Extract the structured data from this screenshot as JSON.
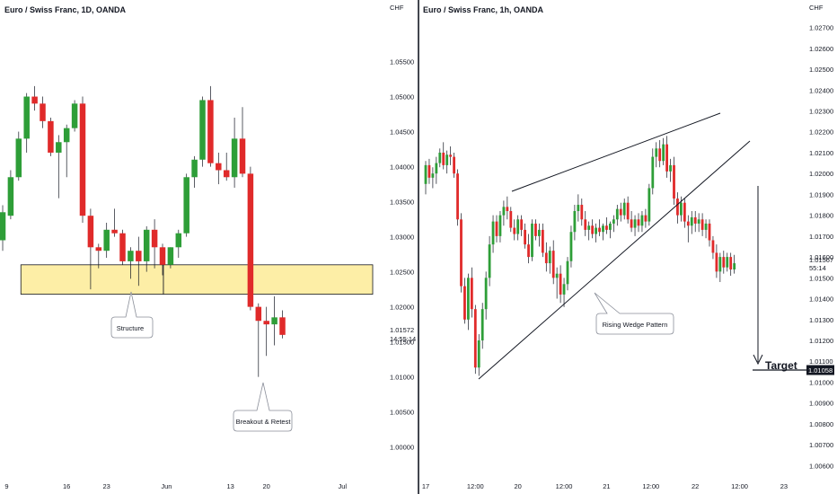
{
  "colors": {
    "up": "#2e9e38",
    "down": "#e02a2a",
    "zone_fill": "#fdeea6",
    "zone_stroke": "#131722",
    "text": "#131722",
    "price_tag_bg": "#131722",
    "price_tag_text": "#ffffff"
  },
  "chart_data": [
    {
      "type": "candlestick",
      "title": "Euro / Swiss Franc, 1D, OANDA",
      "currency": "CHF",
      "ylim": [
        0.9965,
        1.0625
      ],
      "y_ticks": [
        "1.05500",
        "1.05000",
        "1.04500",
        "1.04000",
        "1.03500",
        "1.03000",
        "1.02500",
        "1.02000",
        "1.01500",
        "1.01000",
        "1.00500",
        "1.00000"
      ],
      "y_tick_values": [
        1.055,
        1.05,
        1.045,
        1.04,
        1.035,
        1.03,
        1.025,
        1.02,
        1.015,
        1.01,
        1.005,
        1.0
      ],
      "x_ticks": [
        "9",
        "16",
        "23",
        "Jun",
        "13",
        "20",
        "Jul"
      ],
      "x_tick_index": [
        0.5,
        8,
        13,
        20.5,
        28.5,
        33,
        42.5
      ],
      "last_price": "1.01572",
      "countdown": "14:55:14",
      "zone": {
        "top": 1.026,
        "bottom": 1.0218,
        "start_index": 2.5,
        "end_index": 45,
        "split_index": 20
      },
      "annotations": [
        {
          "text": "Structure",
          "price": 1.0232
        },
        {
          "text": "Breakout & Retest",
          "price": 1.0095
        }
      ],
      "candles": [
        {
          "o": 1.0295,
          "h": 1.0345,
          "l": 1.028,
          "c": 1.0335
        },
        {
          "o": 1.033,
          "h": 1.0395,
          "l": 1.0325,
          "c": 1.0385
        },
        {
          "o": 1.0385,
          "h": 1.045,
          "l": 1.038,
          "c": 1.044
        },
        {
          "o": 1.044,
          "h": 1.0505,
          "l": 1.042,
          "c": 1.05
        },
        {
          "o": 1.05,
          "h": 1.0515,
          "l": 1.048,
          "c": 1.049
        },
        {
          "o": 1.049,
          "h": 1.05,
          "l": 1.0455,
          "c": 1.0465
        },
        {
          "o": 1.0465,
          "h": 1.047,
          "l": 1.0415,
          "c": 1.042
        },
        {
          "o": 1.042,
          "h": 1.0445,
          "l": 1.0355,
          "c": 1.0435
        },
        {
          "o": 1.0435,
          "h": 1.046,
          "l": 1.0385,
          "c": 1.0455
        },
        {
          "o": 1.0455,
          "h": 1.0495,
          "l": 1.045,
          "c": 1.049
        },
        {
          "o": 1.049,
          "h": 1.05,
          "l": 1.032,
          "c": 1.033
        },
        {
          "o": 1.033,
          "h": 1.034,
          "l": 1.0225,
          "c": 1.0285
        },
        {
          "o": 1.0285,
          "h": 1.029,
          "l": 1.0255,
          "c": 1.028
        },
        {
          "o": 1.028,
          "h": 1.032,
          "l": 1.027,
          "c": 1.031
        },
        {
          "o": 1.031,
          "h": 1.034,
          "l": 1.03,
          "c": 1.0305
        },
        {
          "o": 1.0305,
          "h": 1.031,
          "l": 1.026,
          "c": 1.0265
        },
        {
          "o": 1.0265,
          "h": 1.0285,
          "l": 1.024,
          "c": 1.028
        },
        {
          "o": 1.028,
          "h": 1.03,
          "l": 1.023,
          "c": 1.0265
        },
        {
          "o": 1.0265,
          "h": 1.0315,
          "l": 1.025,
          "c": 1.031
        },
        {
          "o": 1.031,
          "h": 1.0325,
          "l": 1.0255,
          "c": 1.0285
        },
        {
          "o": 1.0285,
          "h": 1.029,
          "l": 1.0245,
          "c": 1.026
        },
        {
          "o": 1.026,
          "h": 1.0285,
          "l": 1.0255,
          "c": 1.0285
        },
        {
          "o": 1.0285,
          "h": 1.031,
          "l": 1.027,
          "c": 1.0305
        },
        {
          "o": 1.0305,
          "h": 1.039,
          "l": 1.03,
          "c": 1.0385
        },
        {
          "o": 1.0385,
          "h": 1.0415,
          "l": 1.037,
          "c": 1.041
        },
        {
          "o": 1.041,
          "h": 1.05,
          "l": 1.04,
          "c": 1.0495
        },
        {
          "o": 1.0495,
          "h": 1.0515,
          "l": 1.04,
          "c": 1.0405
        },
        {
          "o": 1.0405,
          "h": 1.042,
          "l": 1.0375,
          "c": 1.0395
        },
        {
          "o": 1.0395,
          "h": 1.042,
          "l": 1.038,
          "c": 1.0385
        },
        {
          "o": 1.0385,
          "h": 1.047,
          "l": 1.037,
          "c": 1.044
        },
        {
          "o": 1.044,
          "h": 1.0485,
          "l": 1.0385,
          "c": 1.039
        },
        {
          "o": 1.039,
          "h": 1.04,
          "l": 1.0195,
          "c": 1.02
        },
        {
          "o": 1.02,
          "h": 1.0205,
          "l": 1.01,
          "c": 1.018
        },
        {
          "o": 1.018,
          "h": 1.02,
          "l": 1.013,
          "c": 1.0175
        },
        {
          "o": 1.0175,
          "h": 1.0215,
          "l": 1.0145,
          "c": 1.0185
        },
        {
          "o": 1.0185,
          "h": 1.0195,
          "l": 1.0155,
          "c": 1.016
        }
      ]
    },
    {
      "type": "candlestick",
      "title": "Euro / Swiss Franc, 1h, OANDA",
      "currency": "CHF",
      "ylim": [
        1.0055,
        1.0278
      ],
      "y_ticks": [
        "1.02700",
        "1.02600",
        "1.02500",
        "1.02400",
        "1.02300",
        "1.02200",
        "1.02100",
        "1.02000",
        "1.01900",
        "1.01800",
        "1.01700",
        "1.01600",
        "1.01500",
        "1.01400",
        "1.01300",
        "1.01200",
        "1.01100",
        "1.01000",
        "1.00900",
        "1.00800",
        "1.00700",
        "1.00600"
      ],
      "y_tick_values": [
        1.027,
        1.026,
        1.025,
        1.024,
        1.023,
        1.022,
        1.021,
        1.02,
        1.019,
        1.018,
        1.017,
        1.016,
        1.015,
        1.014,
        1.013,
        1.012,
        1.011,
        1.01,
        1.009,
        1.008,
        1.007,
        1.006
      ],
      "x_ticks": [
        "17",
        "12:00",
        "20",
        "12:00",
        "21",
        "12:00",
        "22",
        "12:00",
        "23"
      ],
      "x_tick_index": [
        0,
        14,
        26,
        39,
        51,
        63.5,
        76,
        88.5,
        101
      ],
      "last_price": "1.01567",
      "countdown": "55:14",
      "target_price": "1.01058",
      "target_label": "Target",
      "pattern_label": "Rising Wedge Pattern",
      "candles": [
        {
          "o": 1.0195,
          "h": 1.0206,
          "l": 1.019,
          "c": 1.0204
        },
        {
          "o": 1.0204,
          "h": 1.0207,
          "l": 1.0195,
          "c": 1.0198
        },
        {
          "o": 1.0198,
          "h": 1.0203,
          "l": 1.0193,
          "c": 1.02
        },
        {
          "o": 1.02,
          "h": 1.0208,
          "l": 1.0195,
          "c": 1.0205
        },
        {
          "o": 1.0205,
          "h": 1.0212,
          "l": 1.0203,
          "c": 1.021
        },
        {
          "o": 1.021,
          "h": 1.0215,
          "l": 1.0202,
          "c": 1.0204
        },
        {
          "o": 1.0204,
          "h": 1.0211,
          "l": 1.02,
          "c": 1.0209
        },
        {
          "o": 1.0209,
          "h": 1.0213,
          "l": 1.0204,
          "c": 1.0208
        },
        {
          "o": 1.0208,
          "h": 1.021,
          "l": 1.0198,
          "c": 1.02
        },
        {
          "o": 1.02,
          "h": 1.0202,
          "l": 1.0175,
          "c": 1.0178
        },
        {
          "o": 1.0178,
          "h": 1.0181,
          "l": 1.0143,
          "c": 1.0146
        },
        {
          "o": 1.0146,
          "h": 1.015,
          "l": 1.0128,
          "c": 1.013
        },
        {
          "o": 1.013,
          "h": 1.0152,
          "l": 1.0125,
          "c": 1.015
        },
        {
          "o": 1.015,
          "h": 1.0155,
          "l": 1.0131,
          "c": 1.0135
        },
        {
          "o": 1.0135,
          "h": 1.0137,
          "l": 1.0104,
          "c": 1.0107
        },
        {
          "o": 1.0107,
          "h": 1.0123,
          "l": 1.0103,
          "c": 1.012
        },
        {
          "o": 1.012,
          "h": 1.0138,
          "l": 1.0116,
          "c": 1.0135
        },
        {
          "o": 1.0135,
          "h": 1.0153,
          "l": 1.013,
          "c": 1.015
        },
        {
          "o": 1.015,
          "h": 1.017,
          "l": 1.0146,
          "c": 1.0166
        },
        {
          "o": 1.0166,
          "h": 1.018,
          "l": 1.0162,
          "c": 1.0177
        },
        {
          "o": 1.0177,
          "h": 1.018,
          "l": 1.0167,
          "c": 1.017
        },
        {
          "o": 1.017,
          "h": 1.0182,
          "l": 1.0167,
          "c": 1.018
        },
        {
          "o": 1.018,
          "h": 1.0187,
          "l": 1.0175,
          "c": 1.0184
        },
        {
          "o": 1.0184,
          "h": 1.0189,
          "l": 1.0178,
          "c": 1.0182
        },
        {
          "o": 1.0182,
          "h": 1.0184,
          "l": 1.0172,
          "c": 1.0174
        },
        {
          "o": 1.0174,
          "h": 1.0178,
          "l": 1.0168,
          "c": 1.0171
        },
        {
          "o": 1.0171,
          "h": 1.018,
          "l": 1.0168,
          "c": 1.0178
        },
        {
          "o": 1.0178,
          "h": 1.018,
          "l": 1.017,
          "c": 1.0173
        },
        {
          "o": 1.0173,
          "h": 1.0176,
          "l": 1.0164,
          "c": 1.0166
        },
        {
          "o": 1.0166,
          "h": 1.0171,
          "l": 1.0157,
          "c": 1.016
        },
        {
          "o": 1.016,
          "h": 1.0178,
          "l": 1.0158,
          "c": 1.0176
        },
        {
          "o": 1.0176,
          "h": 1.0178,
          "l": 1.0168,
          "c": 1.017
        },
        {
          "o": 1.017,
          "h": 1.0176,
          "l": 1.0165,
          "c": 1.0173
        },
        {
          "o": 1.0173,
          "h": 1.0176,
          "l": 1.016,
          "c": 1.0162
        },
        {
          "o": 1.0162,
          "h": 1.0167,
          "l": 1.0153,
          "c": 1.0157
        },
        {
          "o": 1.0157,
          "h": 1.0165,
          "l": 1.0152,
          "c": 1.0163
        },
        {
          "o": 1.0163,
          "h": 1.0168,
          "l": 1.0147,
          "c": 1.015
        },
        {
          "o": 1.015,
          "h": 1.0155,
          "l": 1.014,
          "c": 1.0152
        },
        {
          "o": 1.0152,
          "h": 1.0156,
          "l": 1.0138,
          "c": 1.0142
        },
        {
          "o": 1.0142,
          "h": 1.015,
          "l": 1.0136,
          "c": 1.0147
        },
        {
          "o": 1.0147,
          "h": 1.016,
          "l": 1.0144,
          "c": 1.0158
        },
        {
          "o": 1.0158,
          "h": 1.0175,
          "l": 1.0155,
          "c": 1.0172
        },
        {
          "o": 1.0172,
          "h": 1.0185,
          "l": 1.0168,
          "c": 1.0182
        },
        {
          "o": 1.0182,
          "h": 1.019,
          "l": 1.0177,
          "c": 1.0185
        },
        {
          "o": 1.0185,
          "h": 1.0188,
          "l": 1.0175,
          "c": 1.0178
        },
        {
          "o": 1.0178,
          "h": 1.0182,
          "l": 1.017,
          "c": 1.0173
        },
        {
          "o": 1.0173,
          "h": 1.0177,
          "l": 1.0168,
          "c": 1.0175
        },
        {
          "o": 1.0175,
          "h": 1.0178,
          "l": 1.0169,
          "c": 1.0171
        },
        {
          "o": 1.0171,
          "h": 1.0176,
          "l": 1.0167,
          "c": 1.0174
        },
        {
          "o": 1.0174,
          "h": 1.0178,
          "l": 1.017,
          "c": 1.0172
        },
        {
          "o": 1.0172,
          "h": 1.0176,
          "l": 1.0168,
          "c": 1.0175
        },
        {
          "o": 1.0175,
          "h": 1.0179,
          "l": 1.0171,
          "c": 1.0173
        },
        {
          "o": 1.0173,
          "h": 1.0177,
          "l": 1.0169,
          "c": 1.0176
        },
        {
          "o": 1.0176,
          "h": 1.018,
          "l": 1.0172,
          "c": 1.0178
        },
        {
          "o": 1.0178,
          "h": 1.0185,
          "l": 1.0175,
          "c": 1.0183
        },
        {
          "o": 1.0183,
          "h": 1.0186,
          "l": 1.0177,
          "c": 1.018
        },
        {
          "o": 1.018,
          "h": 1.0188,
          "l": 1.0178,
          "c": 1.0186
        },
        {
          "o": 1.0186,
          "h": 1.0189,
          "l": 1.0176,
          "c": 1.0178
        },
        {
          "o": 1.0178,
          "h": 1.0182,
          "l": 1.0172,
          "c": 1.0174
        },
        {
          "o": 1.0174,
          "h": 1.018,
          "l": 1.017,
          "c": 1.0178
        },
        {
          "o": 1.0178,
          "h": 1.0181,
          "l": 1.0172,
          "c": 1.0175
        },
        {
          "o": 1.0175,
          "h": 1.0182,
          "l": 1.0172,
          "c": 1.018
        },
        {
          "o": 1.018,
          "h": 1.0183,
          "l": 1.0174,
          "c": 1.0177
        },
        {
          "o": 1.0177,
          "h": 1.0195,
          "l": 1.0175,
          "c": 1.0193
        },
        {
          "o": 1.0193,
          "h": 1.0212,
          "l": 1.019,
          "c": 1.0208
        },
        {
          "o": 1.0208,
          "h": 1.0215,
          "l": 1.0203,
          "c": 1.0212
        },
        {
          "o": 1.0212,
          "h": 1.0216,
          "l": 1.0203,
          "c": 1.0206
        },
        {
          "o": 1.0206,
          "h": 1.0217,
          "l": 1.0204,
          "c": 1.0214
        },
        {
          "o": 1.0214,
          "h": 1.0218,
          "l": 1.0198,
          "c": 1.0201
        },
        {
          "o": 1.0201,
          "h": 1.0207,
          "l": 1.0196,
          "c": 1.0204
        },
        {
          "o": 1.0204,
          "h": 1.0208,
          "l": 1.0185,
          "c": 1.0188
        },
        {
          "o": 1.0188,
          "h": 1.0191,
          "l": 1.0176,
          "c": 1.018
        },
        {
          "o": 1.018,
          "h": 1.0189,
          "l": 1.0177,
          "c": 1.0186
        },
        {
          "o": 1.0186,
          "h": 1.0188,
          "l": 1.0174,
          "c": 1.0177
        },
        {
          "o": 1.0177,
          "h": 1.018,
          "l": 1.0167,
          "c": 1.0175
        },
        {
          "o": 1.0175,
          "h": 1.0182,
          "l": 1.0171,
          "c": 1.0179
        },
        {
          "o": 1.0179,
          "h": 1.0182,
          "l": 1.0172,
          "c": 1.0176
        },
        {
          "o": 1.0176,
          "h": 1.0181,
          "l": 1.0172,
          "c": 1.0178
        },
        {
          "o": 1.0178,
          "h": 1.0181,
          "l": 1.017,
          "c": 1.0173
        },
        {
          "o": 1.0173,
          "h": 1.0178,
          "l": 1.0169,
          "c": 1.0176
        },
        {
          "o": 1.0176,
          "h": 1.0178,
          "l": 1.0165,
          "c": 1.0168
        },
        {
          "o": 1.0168,
          "h": 1.017,
          "l": 1.0159,
          "c": 1.0162
        },
        {
          "o": 1.0162,
          "h": 1.0166,
          "l": 1.015,
          "c": 1.0153
        },
        {
          "o": 1.0153,
          "h": 1.0162,
          "l": 1.0148,
          "c": 1.016
        },
        {
          "o": 1.016,
          "h": 1.0163,
          "l": 1.0152,
          "c": 1.0155
        },
        {
          "o": 1.0155,
          "h": 1.0162,
          "l": 1.0153,
          "c": 1.016
        },
        {
          "o": 1.016,
          "h": 1.0162,
          "l": 1.0151,
          "c": 1.0154
        },
        {
          "o": 1.0154,
          "h": 1.0161,
          "l": 1.0152,
          "c": 1.0157
        }
      ],
      "wedge_upper": [
        {
          "i": 22,
          "p": 1.019
        },
        {
          "i": 84,
          "p": 1.023
        }
      ],
      "wedge_lower": [
        {
          "i": 16,
          "p": 1.0098
        },
        {
          "i": 91,
          "p": 1.021
        }
      ]
    }
  ]
}
